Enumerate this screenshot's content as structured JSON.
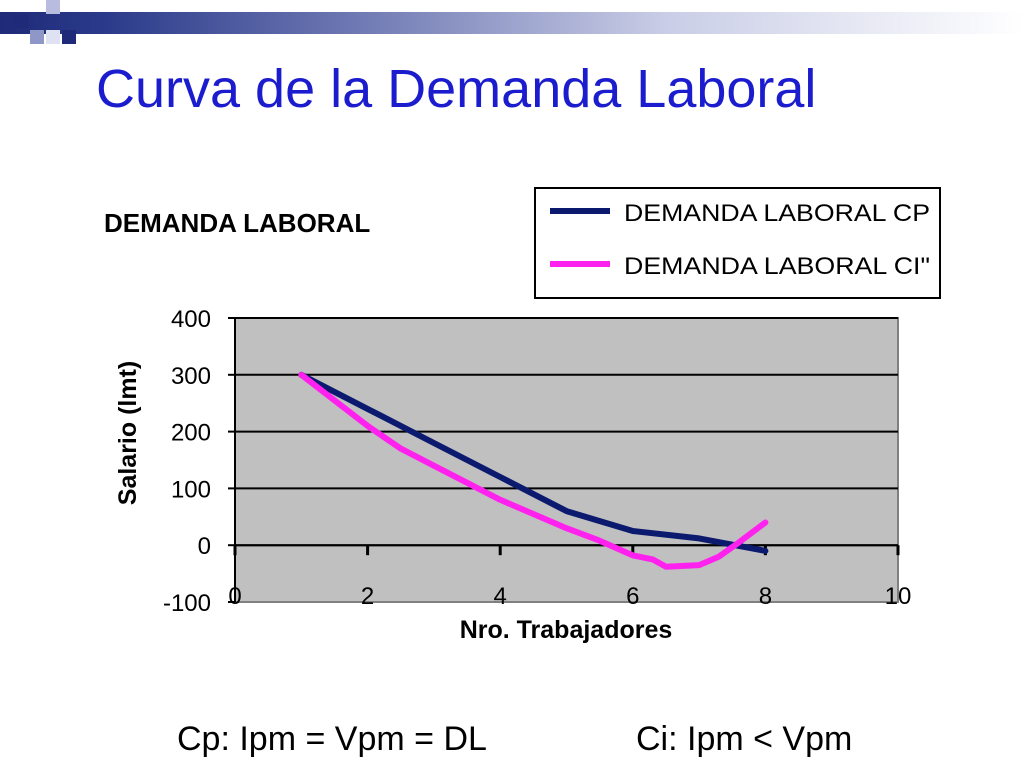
{
  "slide": {
    "title": "Curva de la Demanda Laboral",
    "footer_left": "Cp: Ipm = Vpm = DL",
    "footer_right": "Ci: Ipm < Vpm"
  },
  "colors": {
    "title": "#1c1ccf",
    "plot_bg": "#c0c0c0",
    "series_cp": "#0b1a6e",
    "series_ci": "#ff22ee"
  },
  "chart_data": {
    "type": "line",
    "title": "DEMANDA LABORAL",
    "xlabel": "Nro. Trabajadores",
    "ylabel": "Salario (lmt)",
    "xlim": [
      0,
      10
    ],
    "ylim": [
      -100,
      400
    ],
    "x_ticks": [
      "0",
      "2",
      "4",
      "6",
      "8",
      "10"
    ],
    "y_ticks": [
      "400",
      "300",
      "200",
      "100",
      "0",
      "-100"
    ],
    "grid": true,
    "legend_position": "top-right",
    "series": [
      {
        "name": "DEMANDA LABORAL CP",
        "color": "#0b1a6e",
        "x": [
          1,
          2,
          3,
          4,
          5,
          6,
          7,
          8
        ],
        "y": [
          300,
          240,
          180,
          120,
          60,
          25,
          12,
          -10
        ]
      },
      {
        "name": "DEMANDA LABORAL CI\"",
        "color": "#ff22ee",
        "x": [
          1,
          2,
          2.5,
          3,
          4,
          5,
          5.5,
          6,
          6.3,
          6.5,
          7,
          7.3,
          7.6,
          8
        ],
        "y": [
          300,
          210,
          170,
          140,
          80,
          30,
          8,
          -18,
          -25,
          -38,
          -35,
          -20,
          5,
          40
        ]
      }
    ]
  }
}
